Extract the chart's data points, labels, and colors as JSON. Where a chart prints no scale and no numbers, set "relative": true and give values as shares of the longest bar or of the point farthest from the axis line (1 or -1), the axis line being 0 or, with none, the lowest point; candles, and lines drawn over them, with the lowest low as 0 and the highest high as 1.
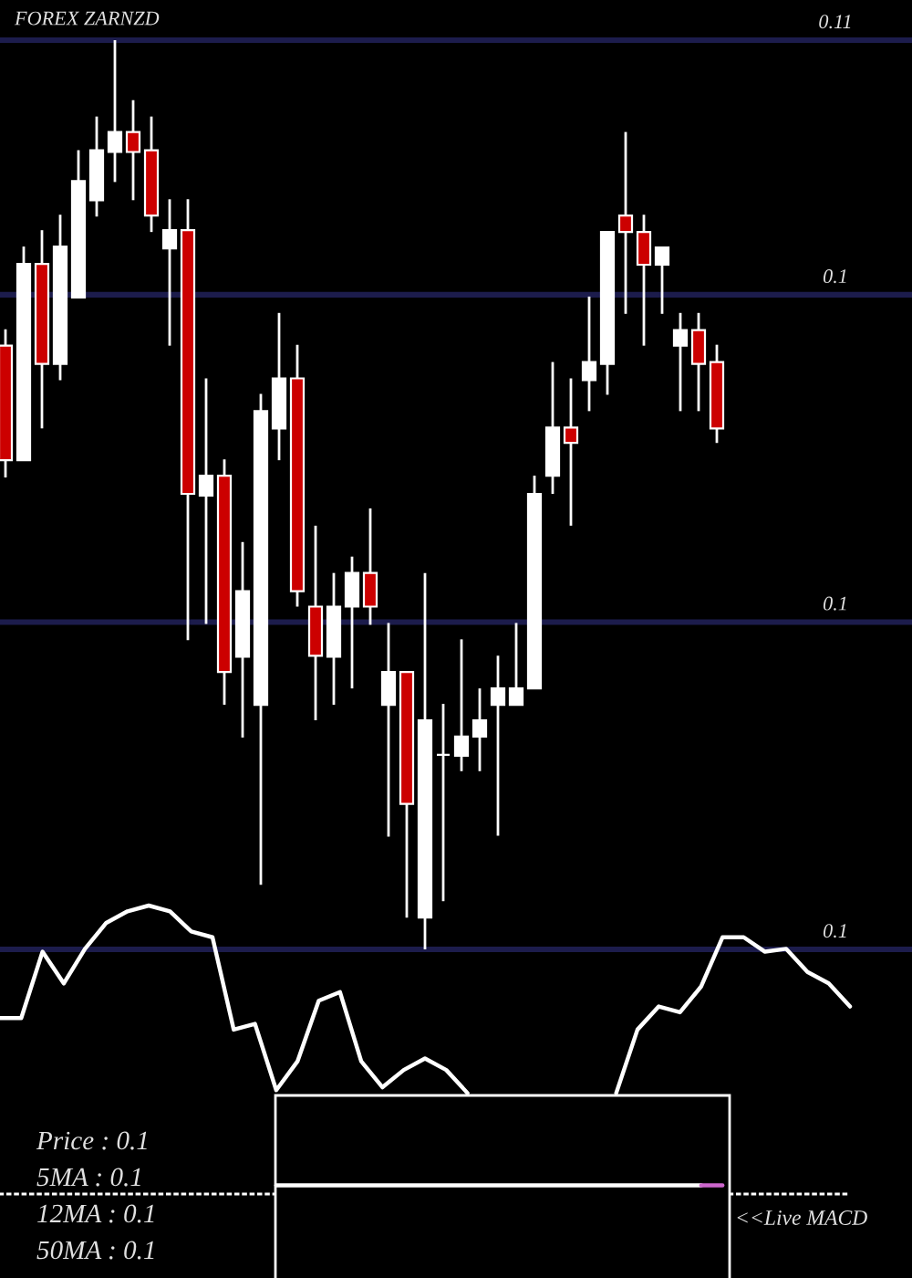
{
  "chart_data": [
    {
      "type": "candlestick",
      "title": "FOREX ZARNZD",
      "relative": true,
      "categories": [
        null,
        null,
        null,
        null,
        null,
        null,
        null,
        null,
        null,
        null,
        null,
        null,
        null,
        null,
        null,
        null,
        null,
        null,
        null,
        null,
        null,
        null,
        null,
        null,
        null,
        null,
        null,
        null,
        null,
        null,
        null,
        null,
        null,
        null,
        null,
        null,
        null,
        null,
        null,
        null
      ],
      "ohlc": [
        [
          0.664,
          0.682,
          0.519,
          0.538
        ],
        [
          0.538,
          0.773,
          0.538,
          0.754
        ],
        [
          0.754,
          0.791,
          0.573,
          0.644
        ],
        [
          0.644,
          0.808,
          0.626,
          0.773
        ],
        [
          0.717,
          0.879,
          0.717,
          0.845
        ],
        [
          0.824,
          0.916,
          0.806,
          0.879
        ],
        [
          0.877,
          1.0,
          0.844,
          0.899
        ],
        [
          0.899,
          0.934,
          0.824,
          0.877
        ],
        [
          0.879,
          0.916,
          0.789,
          0.807
        ],
        [
          0.771,
          0.825,
          0.664,
          0.791
        ],
        [
          0.791,
          0.825,
          0.34,
          0.501
        ],
        [
          0.499,
          0.628,
          0.358,
          0.521
        ],
        [
          0.521,
          0.539,
          0.269,
          0.305
        ],
        [
          0.322,
          0.448,
          0.233,
          0.394
        ],
        [
          0.269,
          0.611,
          0.071,
          0.592
        ],
        [
          0.573,
          0.7,
          0.538,
          0.628
        ],
        [
          0.628,
          0.665,
          0.377,
          0.394
        ],
        [
          0.377,
          0.466,
          0.252,
          0.323
        ],
        [
          0.322,
          0.414,
          0.269,
          0.377
        ],
        [
          0.377,
          0.432,
          0.287,
          0.414
        ],
        [
          0.414,
          0.485,
          0.357,
          0.377
        ],
        [
          0.269,
          0.359,
          0.124,
          0.305
        ],
        [
          0.305,
          0.305,
          0.035,
          0.16
        ],
        [
          0.035,
          0.414,
          0.0,
          0.252
        ],
        [
          0.214,
          0.27,
          0.053,
          0.214
        ],
        [
          0.213,
          0.341,
          0.196,
          0.234
        ],
        [
          0.234,
          0.287,
          0.196,
          0.252
        ],
        [
          0.269,
          0.323,
          0.125,
          0.287
        ],
        [
          0.269,
          0.359,
          0.269,
          0.287
        ],
        [
          0.287,
          0.521,
          0.287,
          0.501
        ],
        [
          0.521,
          0.646,
          0.501,
          0.574
        ],
        [
          0.574,
          0.628,
          0.466,
          0.557
        ],
        [
          0.626,
          0.718,
          0.592,
          0.646
        ],
        [
          0.644,
          0.789,
          0.61,
          0.789
        ],
        [
          0.807,
          0.899,
          0.699,
          0.789
        ],
        [
          0.789,
          0.808,
          0.664,
          0.753
        ],
        [
          0.753,
          0.772,
          0.699,
          0.772
        ],
        [
          0.664,
          0.7,
          0.592,
          0.681
        ],
        [
          0.681,
          0.7,
          0.592,
          0.644
        ],
        [
          0.646,
          0.665,
          0.557,
          0.573
        ]
      ],
      "colors": [
        "#cc0000",
        "#ffffff",
        "#cc0000",
        "#ffffff",
        "#ffffff",
        "#ffffff",
        "#ffffff",
        "#cc0000",
        "#cc0000",
        "#ffffff",
        "#cc0000",
        "#ffffff",
        "#cc0000",
        "#ffffff",
        "#ffffff",
        "#ffffff",
        "#cc0000",
        "#cc0000",
        "#ffffff",
        "#ffffff",
        "#cc0000",
        "#ffffff",
        "#cc0000",
        "#ffffff",
        "#ffffff",
        "#ffffff",
        "#ffffff",
        "#ffffff",
        "#ffffff",
        "#ffffff",
        "#ffffff",
        "#cc0000",
        "#ffffff",
        "#ffffff",
        "#cc0000",
        "#cc0000",
        "#ffffff",
        "#ffffff",
        "#cc0000",
        "#cc0000"
      ],
      "ref_lines": [
        {
          "axis": "y",
          "value": 1.0,
          "color": "#1c1c4c"
        },
        {
          "axis": "y",
          "value": 0.72,
          "color": "#1c1c4c"
        },
        {
          "axis": "y",
          "value": 0.36,
          "color": "#1c1c4c"
        },
        {
          "axis": "y",
          "value": 0.0,
          "color": "#1c1c4c"
        }
      ],
      "annotations": [
        {
          "text": "0.11",
          "y": 1.0
        },
        {
          "text": "0.1",
          "y": 0.72
        },
        {
          "text": "0.1",
          "y": 0.36
        },
        {
          "text": "0.1",
          "y": 0.0
        },
        "Price : 0.1",
        "5MA : 0.1",
        "12MA : 0.1",
        "50MA : 0.1"
      ]
    },
    {
      "type": "line",
      "relative": true,
      "categories": [
        null,
        null,
        null,
        null,
        null,
        null,
        null,
        null,
        null,
        null,
        null,
        null,
        null,
        null,
        null,
        null,
        null,
        null,
        null,
        null,
        null,
        null,
        null,
        null,
        null,
        null,
        null,
        null,
        null,
        null,
        null,
        null,
        null,
        null,
        null,
        null,
        null,
        null,
        null,
        null,
        null
      ],
      "series": [
        {
          "color": "#ffffff",
          "values": [
            0.61,
            0.61,
            0.84,
            0.73,
            0.85,
            0.94,
            0.98,
            1.0,
            0.98,
            0.91,
            0.89,
            0.57,
            0.59,
            0.36,
            0.46,
            0.67,
            0.7,
            0.46,
            0.37,
            0.43,
            0.47,
            0.43,
            0.35,
            null,
            null,
            null,
            null,
            null,
            null,
            0.35,
            0.57,
            0.65,
            0.63,
            0.72,
            0.89,
            0.89,
            0.84,
            0.85,
            0.77,
            0.73,
            0.65
          ]
        },
        {
          "color": "#ffffff",
          "values": [
            null,
            null,
            null,
            null,
            null,
            null,
            null,
            null,
            null,
            null,
            null,
            null,
            null,
            0.03,
            0.03,
            0.03,
            0.03,
            0.03,
            0.03,
            0.03,
            0.03,
            0.03,
            0.03,
            0.03,
            0.03,
            0.03,
            0.03,
            0.03,
            0.03,
            0.03,
            0.03,
            0.03,
            0.03,
            0.03,
            null,
            null,
            null,
            null,
            null,
            null,
            null
          ]
        },
        {
          "color": "#cc66cc",
          "values": [
            null,
            null,
            null,
            null,
            null,
            null,
            null,
            null,
            null,
            null,
            null,
            null,
            null,
            null,
            null,
            null,
            null,
            null,
            null,
            null,
            null,
            null,
            null,
            null,
            null,
            null,
            null,
            null,
            null,
            null,
            null,
            null,
            null,
            0.03,
            0.03,
            null,
            null,
            null,
            null,
            null,
            null
          ]
        }
      ],
      "annotations": [
        "<<Live MACD"
      ]
    }
  ]
}
